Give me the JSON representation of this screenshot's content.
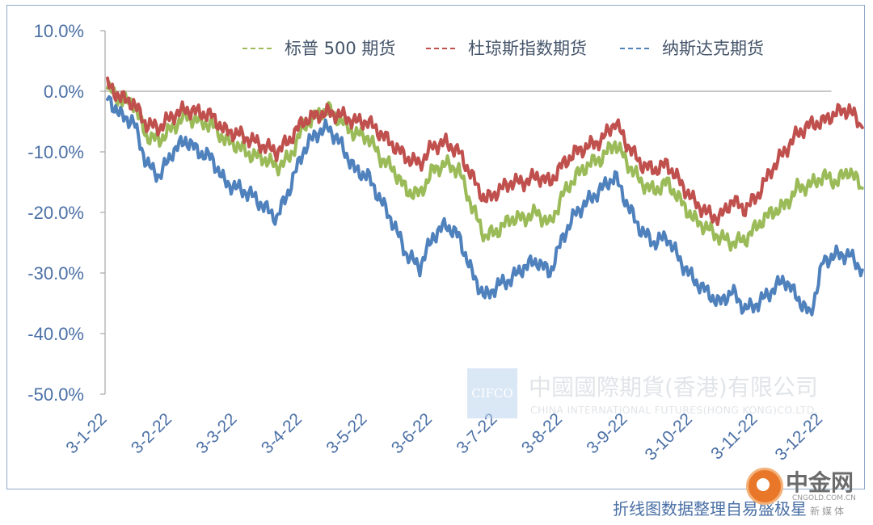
{
  "chart_data": {
    "type": "line",
    "title": "",
    "xlabel": "",
    "ylabel": "",
    "ylim": [
      -50,
      10
    ],
    "y_ticks": [
      "10.0%",
      "0.0%",
      "-10.0%",
      "-20.0%",
      "-30.0%",
      "-40.0%",
      "-50.0%"
    ],
    "y_tick_values": [
      10,
      0,
      -10,
      -20,
      -30,
      -40,
      -50
    ],
    "x_ticks": [
      "3-1-22",
      "3-2-22",
      "3-3-22",
      "3-4-22",
      "3-5-22",
      "3-6-22",
      "3-7-22",
      "3-8-22",
      "3-9-22",
      "3-10-22",
      "3-11-22",
      "3-12-22"
    ],
    "x_tick_positions": [
      0,
      1,
      2,
      3,
      4,
      5,
      6,
      7,
      8,
      9,
      10,
      11
    ],
    "legend_position": "top",
    "grid": false,
    "x_axis_line": "y=0",
    "series": [
      {
        "name": "标普 500 期货",
        "color": "#9bbb59",
        "style": "dashed-legend",
        "points": [
          [
            0,
            0.5
          ],
          [
            0.2,
            -1.5
          ],
          [
            0.4,
            -2
          ],
          [
            0.6,
            -7.5
          ],
          [
            0.8,
            -8
          ],
          [
            1,
            -6
          ],
          [
            1.2,
            -4
          ],
          [
            1.4,
            -5
          ],
          [
            1.6,
            -5.5
          ],
          [
            1.8,
            -8
          ],
          [
            2,
            -9
          ],
          [
            2.2,
            -10.5
          ],
          [
            2.4,
            -11
          ],
          [
            2.6,
            -12.5
          ],
          [
            2.8,
            -11
          ],
          [
            3,
            -6
          ],
          [
            3.2,
            -4
          ],
          [
            3.4,
            -3
          ],
          [
            3.6,
            -5
          ],
          [
            3.8,
            -7
          ],
          [
            4,
            -7.5
          ],
          [
            4.2,
            -11
          ],
          [
            4.4,
            -13
          ],
          [
            4.6,
            -16.5
          ],
          [
            4.8,
            -17
          ],
          [
            5,
            -13
          ],
          [
            5.2,
            -12
          ],
          [
            5.4,
            -13
          ],
          [
            5.6,
            -19
          ],
          [
            5.8,
            -24
          ],
          [
            6,
            -23
          ],
          [
            6.2,
            -21
          ],
          [
            6.4,
            -21
          ],
          [
            6.6,
            -20
          ],
          [
            6.8,
            -22
          ],
          [
            7,
            -17
          ],
          [
            7.2,
            -14
          ],
          [
            7.4,
            -12
          ],
          [
            7.6,
            -11
          ],
          [
            7.8,
            -8.5
          ],
          [
            8,
            -12
          ],
          [
            8.2,
            -15
          ],
          [
            8.4,
            -16.5
          ],
          [
            8.6,
            -15
          ],
          [
            8.8,
            -18
          ],
          [
            9,
            -21
          ],
          [
            9.2,
            -22.5
          ],
          [
            9.4,
            -24
          ],
          [
            9.6,
            -25
          ],
          [
            9.8,
            -24.5
          ],
          [
            10,
            -22
          ],
          [
            10.2,
            -20
          ],
          [
            10.4,
            -19
          ],
          [
            10.6,
            -16
          ],
          [
            10.8,
            -15.5
          ],
          [
            11,
            -14
          ],
          [
            11.2,
            -15
          ],
          [
            11.4,
            -13
          ],
          [
            11.6,
            -16
          ]
        ]
      },
      {
        "name": "杜琼斯指数期货",
        "color": "#c0504d",
        "style": "dashed-legend",
        "points": [
          [
            0,
            1
          ],
          [
            0.2,
            -1
          ],
          [
            0.4,
            -2
          ],
          [
            0.6,
            -5.5
          ],
          [
            0.8,
            -6
          ],
          [
            1,
            -4
          ],
          [
            1.2,
            -3
          ],
          [
            1.4,
            -3.5
          ],
          [
            1.6,
            -4
          ],
          [
            1.8,
            -6.5
          ],
          [
            2,
            -7
          ],
          [
            2.2,
            -8
          ],
          [
            2.4,
            -9
          ],
          [
            2.6,
            -10
          ],
          [
            2.8,
            -8
          ],
          [
            3,
            -5
          ],
          [
            3.2,
            -4
          ],
          [
            3.4,
            -3.5
          ],
          [
            3.6,
            -4
          ],
          [
            3.8,
            -5
          ],
          [
            4,
            -5
          ],
          [
            4.2,
            -7
          ],
          [
            4.4,
            -9
          ],
          [
            4.6,
            -11
          ],
          [
            4.8,
            -12
          ],
          [
            5,
            -9
          ],
          [
            5.2,
            -8.5
          ],
          [
            5.4,
            -10
          ],
          [
            5.6,
            -14
          ],
          [
            5.8,
            -18
          ],
          [
            6,
            -16.5
          ],
          [
            6.2,
            -15
          ],
          [
            6.4,
            -15
          ],
          [
            6.6,
            -14
          ],
          [
            6.8,
            -15
          ],
          [
            7,
            -12
          ],
          [
            7.2,
            -10
          ],
          [
            7.4,
            -9
          ],
          [
            7.6,
            -8
          ],
          [
            7.8,
            -5
          ],
          [
            8,
            -9
          ],
          [
            8.2,
            -12
          ],
          [
            8.4,
            -13
          ],
          [
            8.6,
            -12
          ],
          [
            8.8,
            -15
          ],
          [
            9,
            -18
          ],
          [
            9.2,
            -20
          ],
          [
            9.4,
            -21
          ],
          [
            9.6,
            -18
          ],
          [
            9.8,
            -19.5
          ],
          [
            10,
            -17
          ],
          [
            10.2,
            -13
          ],
          [
            10.4,
            -10
          ],
          [
            10.6,
            -7
          ],
          [
            10.8,
            -5.5
          ],
          [
            11,
            -5
          ],
          [
            11.2,
            -3.5
          ],
          [
            11.4,
            -3
          ],
          [
            11.6,
            -6
          ]
        ]
      },
      {
        "name": "纳斯达克期货",
        "color": "#4f81bd",
        "style": "dashed-legend",
        "points": [
          [
            0,
            -1
          ],
          [
            0.2,
            -4
          ],
          [
            0.4,
            -5
          ],
          [
            0.6,
            -12
          ],
          [
            0.8,
            -14
          ],
          [
            1,
            -10
          ],
          [
            1.2,
            -8
          ],
          [
            1.4,
            -10
          ],
          [
            1.6,
            -11
          ],
          [
            1.8,
            -15
          ],
          [
            2,
            -16
          ],
          [
            2.2,
            -17
          ],
          [
            2.4,
            -19
          ],
          [
            2.6,
            -21
          ],
          [
            2.8,
            -16
          ],
          [
            3,
            -10
          ],
          [
            3.2,
            -7
          ],
          [
            3.4,
            -6
          ],
          [
            3.6,
            -9
          ],
          [
            3.8,
            -13
          ],
          [
            4,
            -14
          ],
          [
            4.2,
            -18
          ],
          [
            4.4,
            -22
          ],
          [
            4.6,
            -27
          ],
          [
            4.8,
            -29
          ],
          [
            5,
            -24
          ],
          [
            5.2,
            -22
          ],
          [
            5.4,
            -24
          ],
          [
            5.6,
            -30
          ],
          [
            5.8,
            -34
          ],
          [
            6,
            -32
          ],
          [
            6.2,
            -31
          ],
          [
            6.4,
            -29
          ],
          [
            6.6,
            -28
          ],
          [
            6.8,
            -30
          ],
          [
            7,
            -24
          ],
          [
            7.2,
            -20
          ],
          [
            7.4,
            -18
          ],
          [
            7.6,
            -16
          ],
          [
            7.8,
            -14
          ],
          [
            8,
            -19
          ],
          [
            8.2,
            -23
          ],
          [
            8.4,
            -25
          ],
          [
            8.6,
            -24
          ],
          [
            8.8,
            -28
          ],
          [
            9,
            -31
          ],
          [
            9.2,
            -33
          ],
          [
            9.4,
            -35
          ],
          [
            9.6,
            -33
          ],
          [
            9.8,
            -36
          ],
          [
            10,
            -35
          ],
          [
            10.2,
            -33
          ],
          [
            10.4,
            -31
          ],
          [
            10.6,
            -34
          ],
          [
            10.8,
            -37
          ],
          [
            11,
            -28
          ],
          [
            11.2,
            -27
          ],
          [
            11.4,
            -27
          ],
          [
            11.6,
            -29.5
          ]
        ]
      }
    ]
  },
  "watermark": {
    "logo_text": "CIFCO",
    "company_cn": "中國國際期貨(香港)有限公司",
    "company_en": "CHINA INTERNATIONAL FUTURES(HONG KONG)CO.LTD."
  },
  "source_note": "折线图数据整理自易盛极星",
  "corner_logo": {
    "name": "中金网",
    "url": "CNGOLD.COM.CN",
    "tagline": "新媒体"
  }
}
